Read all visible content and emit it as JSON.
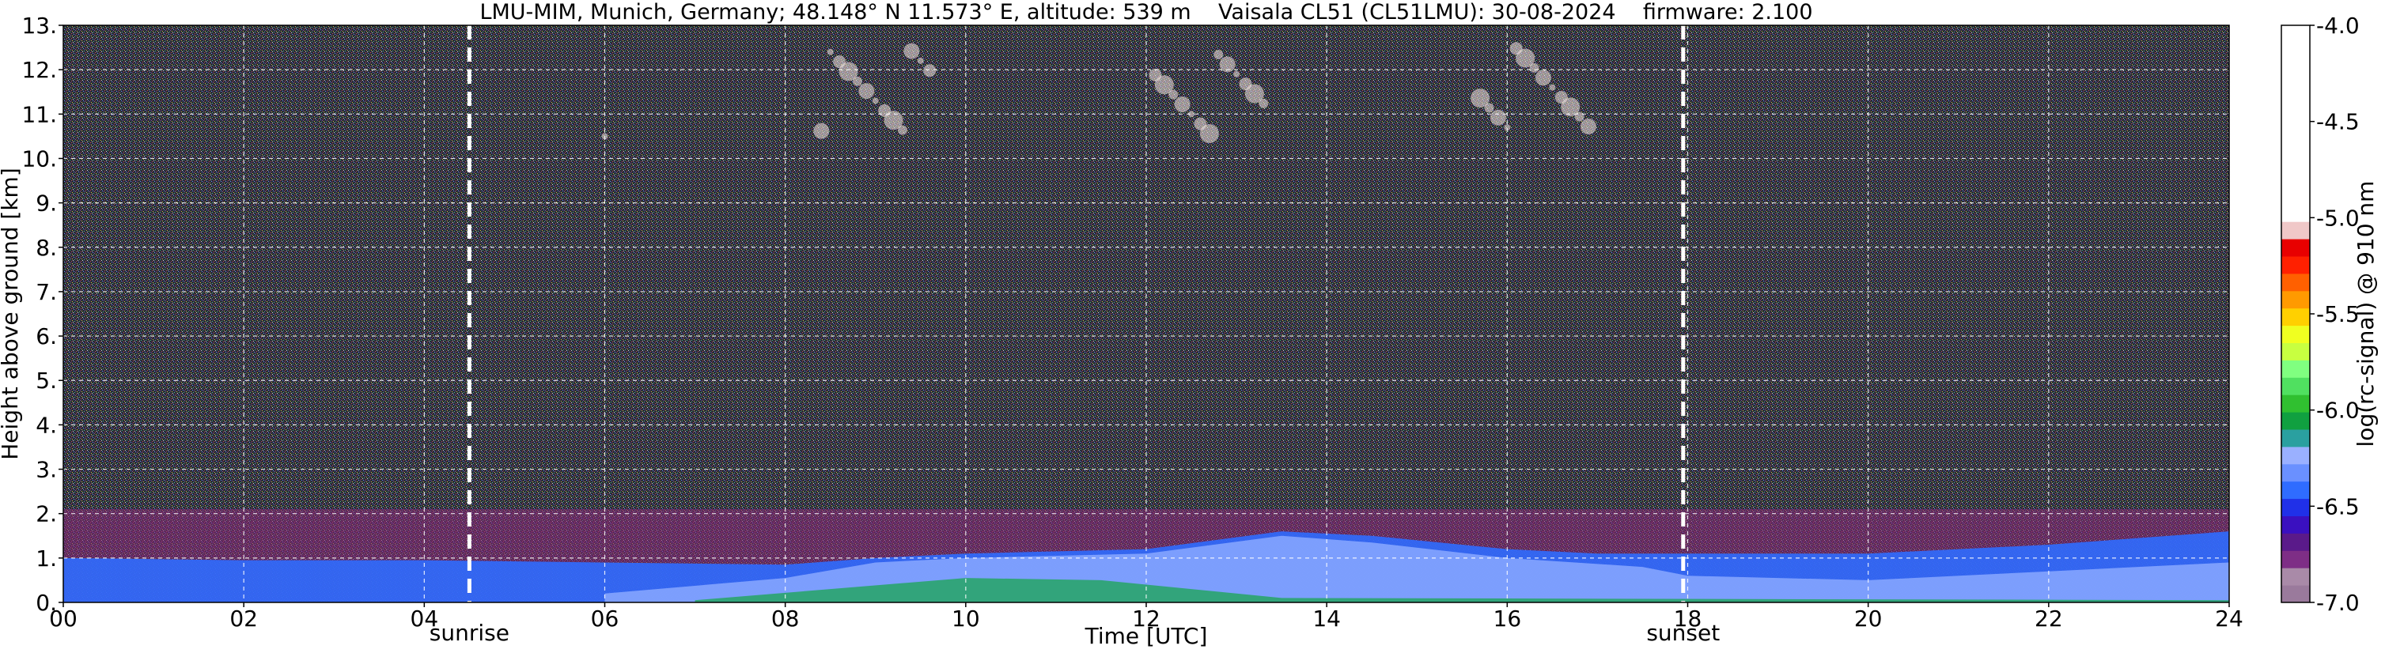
{
  "chart_data": {
    "type": "heatmap",
    "title": "LMU-MIM, Munich, Germany; 48.148° N 11.573° E, altitude: 539 m    Vaisala CL51 (CL51LMU): 30-08-2024    firmware: 2.100",
    "xlabel": "Time [UTC]",
    "ylabel": "Height above ground [km]",
    "colorbar_label": "log(rc-signal) @ 910 nm",
    "xlim": [
      0,
      24
    ],
    "ylim": [
      0,
      13
    ],
    "clim": [
      -7.0,
      -4.0
    ],
    "x_ticks": [
      0,
      2,
      4,
      6,
      8,
      10,
      12,
      14,
      16,
      18,
      20,
      22,
      24
    ],
    "x_tick_labels": [
      "00",
      "02",
      "04",
      "06",
      "08",
      "10",
      "12",
      "14",
      "16",
      "18",
      "20",
      "22",
      "24"
    ],
    "y_ticks": [
      0,
      1,
      2,
      3,
      4,
      5,
      6,
      7,
      8,
      9,
      10,
      11,
      12,
      13
    ],
    "y_tick_labels": [
      "0.",
      "1.",
      "2.",
      "3.",
      "4.",
      "5.",
      "6.",
      "7.",
      "8.",
      "9.",
      "10.",
      "11.",
      "12.",
      "13."
    ],
    "colorbar_ticks": [
      -4.0,
      -4.5,
      -5.0,
      -5.5,
      -6.0,
      -6.5,
      -7.0
    ],
    "colorbar_tick_labels": [
      "-4.0",
      "-4.5",
      "-5.0",
      "-5.5",
      "-6.0",
      "-6.5",
      "-7.0"
    ],
    "grid": true,
    "markers": [
      {
        "label": "sunrise",
        "time": 4.5
      },
      {
        "label": "sunset",
        "time": 17.95
      }
    ],
    "mixing_layer_top_km": [
      [
        0,
        1.0
      ],
      [
        2,
        0.95
      ],
      [
        4,
        0.95
      ],
      [
        6,
        0.9
      ],
      [
        8,
        0.85
      ],
      [
        9,
        1.0
      ],
      [
        10,
        1.1
      ],
      [
        12,
        1.2
      ],
      [
        13.5,
        1.6
      ],
      [
        14.5,
        1.5
      ],
      [
        16,
        1.2
      ],
      [
        17,
        1.1
      ],
      [
        18,
        1.1
      ],
      [
        20,
        1.1
      ],
      [
        22,
        1.3
      ],
      [
        24,
        1.6
      ]
    ],
    "cirrus_cloud_km": [
      10.5,
      12.5
    ],
    "colors": {
      "background_noise": "#2b2d3a",
      "residual_layer": "#8a2a7a",
      "boundary_layer": "#2f6cff",
      "convective_layer": "#8aa8ff",
      "surface_layer": "#1fa55a",
      "marker_line": "#ffffff",
      "grid": "#ffffff"
    },
    "colormap": [
      "#9a7a9c",
      "#a98aa8",
      "#7e2e86",
      "#5a1a8a",
      "#3a10c0",
      "#2030e8",
      "#2f6cff",
      "#6a90ff",
      "#9ab0ff",
      "#2aa0a0",
      "#10a040",
      "#30c030",
      "#50e060",
      "#80ff80",
      "#c8ff40",
      "#f0ff20",
      "#ffd000",
      "#ff9a00",
      "#ff6000",
      "#ff2000",
      "#e80000",
      "#f0c8c8",
      "#ffffff"
    ]
  }
}
